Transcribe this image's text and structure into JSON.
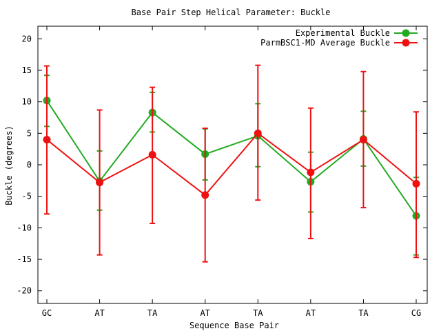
{
  "chart_data": {
    "type": "line",
    "title": "Base Pair Step Helical Parameter: Buckle",
    "xlabel": "Sequence Base Pair",
    "ylabel": "Buckle (degrees)",
    "categories": [
      "GC",
      "AT",
      "TA",
      "AT",
      "TA",
      "AT",
      "TA",
      "CG"
    ],
    "ylim": [
      -22,
      22
    ],
    "yticks": [
      -20,
      -15,
      -10,
      -5,
      0,
      5,
      10,
      15,
      20
    ],
    "grid": false,
    "legend_position": "top-right",
    "series": [
      {
        "name": "Experimental Buckle",
        "color": "#22aa22",
        "values": [
          10.2,
          -2.6,
          8.3,
          1.7,
          4.6,
          -2.7,
          4.1,
          -8.1
        ],
        "err_high": [
          14.2,
          2.2,
          11.5,
          5.7,
          9.7,
          2.0,
          8.5,
          -2.0
        ],
        "err_low": [
          6.1,
          -7.2,
          5.2,
          -2.4,
          -0.3,
          -7.5,
          -0.2,
          -14.3
        ]
      },
      {
        "name": "ParmBSC1-MD Average Buckle",
        "color": "#ee1111",
        "values": [
          4.0,
          -2.8,
          1.6,
          -4.8,
          5.0,
          -1.2,
          4.0,
          -3.0
        ],
        "err_high": [
          15.7,
          8.7,
          12.3,
          5.8,
          15.8,
          9.0,
          14.8,
          8.4
        ],
        "err_low": [
          -7.8,
          -14.3,
          -9.3,
          -15.4,
          -5.6,
          -11.7,
          -6.8,
          -14.7
        ]
      }
    ]
  }
}
